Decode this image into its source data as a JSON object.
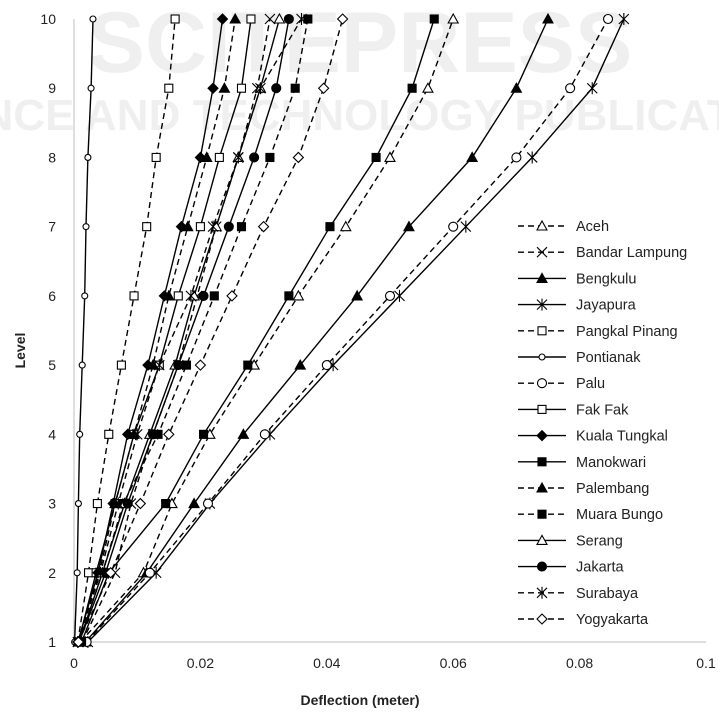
{
  "chart_data": {
    "type": "line",
    "xlabel": "Deflection  (meter)",
    "ylabel": "Level",
    "xlim": [
      0,
      0.1
    ],
    "ylim": [
      1,
      10
    ],
    "xticks": [
      0,
      0.02,
      0.04,
      0.06,
      0.08,
      0.1
    ],
    "xtick_labels": [
      "0",
      "0.02",
      "0.04",
      "0.06",
      "0.08",
      "0.1"
    ],
    "yticks": [
      1,
      2,
      3,
      4,
      5,
      6,
      7,
      8,
      9,
      10
    ],
    "ytick_labels": [
      "1",
      "2",
      "3",
      "4",
      "5",
      "6",
      "7",
      "8",
      "9",
      "10"
    ],
    "grid": false,
    "legend_position": "right",
    "levels": [
      1,
      2,
      3,
      4,
      5,
      6,
      7,
      8,
      9,
      10
    ],
    "series": [
      {
        "name": "Aceh",
        "marker": "triangle-open",
        "dash": true,
        "values": [
          0.001,
          0.011,
          0.0155,
          0.0215,
          0.0285,
          0.0355,
          0.043,
          0.05,
          0.056,
          0.06
        ]
      },
      {
        "name": "Bandar Lampung",
        "marker": "x",
        "dash": true,
        "values": [
          0.0013,
          0.0065,
          0.009,
          0.0125,
          0.0165,
          0.0195,
          0.0225,
          0.026,
          0.029,
          0.031
        ]
      },
      {
        "name": "Bengkulu",
        "marker": "triangle-filled",
        "dash": false,
        "values": [
          0.0018,
          0.0115,
          0.019,
          0.0268,
          0.0358,
          0.0448,
          0.053,
          0.063,
          0.07,
          0.075
        ]
      },
      {
        "name": "Jayapura",
        "marker": "star",
        "dash": false,
        "values": [
          0.0022,
          0.013,
          0.0215,
          0.031,
          0.041,
          0.0515,
          0.062,
          0.0725,
          0.082,
          0.087
        ]
      },
      {
        "name": "Pangkal Pinang",
        "marker": "square-open",
        "dash": true,
        "values": [
          0.0006,
          0.0023,
          0.0037,
          0.0055,
          0.0075,
          0.0095,
          0.0115,
          0.013,
          0.015,
          0.016
        ]
      },
      {
        "name": "Pontianak",
        "marker": "circle-small",
        "dash": false,
        "values": [
          0.0001,
          0.0005,
          0.0007,
          0.0009,
          0.0013,
          0.0017,
          0.0019,
          0.0022,
          0.0027,
          0.003
        ]
      },
      {
        "name": "Palu",
        "marker": "circle-open",
        "dash": true,
        "values": [
          0.002,
          0.012,
          0.0212,
          0.0302,
          0.04,
          0.05,
          0.06,
          0.07,
          0.0785,
          0.0845
        ]
      },
      {
        "name": "Fak Fak",
        "marker": "square-open",
        "dash": false,
        "values": [
          0.0007,
          0.0035,
          0.0065,
          0.0095,
          0.0135,
          0.0165,
          0.02,
          0.023,
          0.0265,
          0.028
        ]
      },
      {
        "name": "Kuala Tungkal",
        "marker": "diamond-filled",
        "dash": false,
        "values": [
          0.0006,
          0.0038,
          0.0062,
          0.0085,
          0.0117,
          0.0143,
          0.017,
          0.02,
          0.022,
          0.0235
        ]
      },
      {
        "name": "Manokwari",
        "marker": "square-filled",
        "dash": false,
        "values": [
          0.0012,
          0.0055,
          0.0145,
          0.0205,
          0.0275,
          0.034,
          0.0405,
          0.0478,
          0.0535,
          0.057
        ]
      },
      {
        "name": "Palembang",
        "marker": "triangle-filled",
        "dash": true,
        "values": [
          0.0007,
          0.004,
          0.0065,
          0.0095,
          0.0125,
          0.015,
          0.018,
          0.021,
          0.0238,
          0.0255
        ]
      },
      {
        "name": "Muara Bungo",
        "marker": "square-filled",
        "dash": true,
        "values": [
          0.0008,
          0.0045,
          0.0078,
          0.0133,
          0.0178,
          0.0222,
          0.0265,
          0.031,
          0.035,
          0.037
        ]
      },
      {
        "name": "Serang",
        "marker": "triangle-open",
        "dash": false,
        "values": [
          0.0008,
          0.0045,
          0.008,
          0.012,
          0.016,
          0.019,
          0.0225,
          0.026,
          0.0295,
          0.0325
        ]
      },
      {
        "name": "Jakarta",
        "marker": "circle-filled",
        "dash": false,
        "values": [
          0.0008,
          0.005,
          0.0085,
          0.0125,
          0.0165,
          0.0205,
          0.0245,
          0.0285,
          0.032,
          0.034
        ]
      },
      {
        "name": "Surabaya",
        "marker": "star",
        "dash": true,
        "values": [
          0.0006,
          0.0042,
          0.007,
          0.01,
          0.0135,
          0.0185,
          0.022,
          0.026,
          0.0295,
          0.036
        ]
      },
      {
        "name": "Yogyakarta",
        "marker": "diamond-open",
        "dash": true,
        "values": [
          0.0007,
          0.0058,
          0.0105,
          0.015,
          0.02,
          0.025,
          0.03,
          0.0355,
          0.0395,
          0.0425
        ]
      }
    ]
  },
  "watermark": {
    "line1": "SCITEPRESS",
    "line2": "SCIENCE AND TECHNOLOGY PUBLICATIONS"
  }
}
